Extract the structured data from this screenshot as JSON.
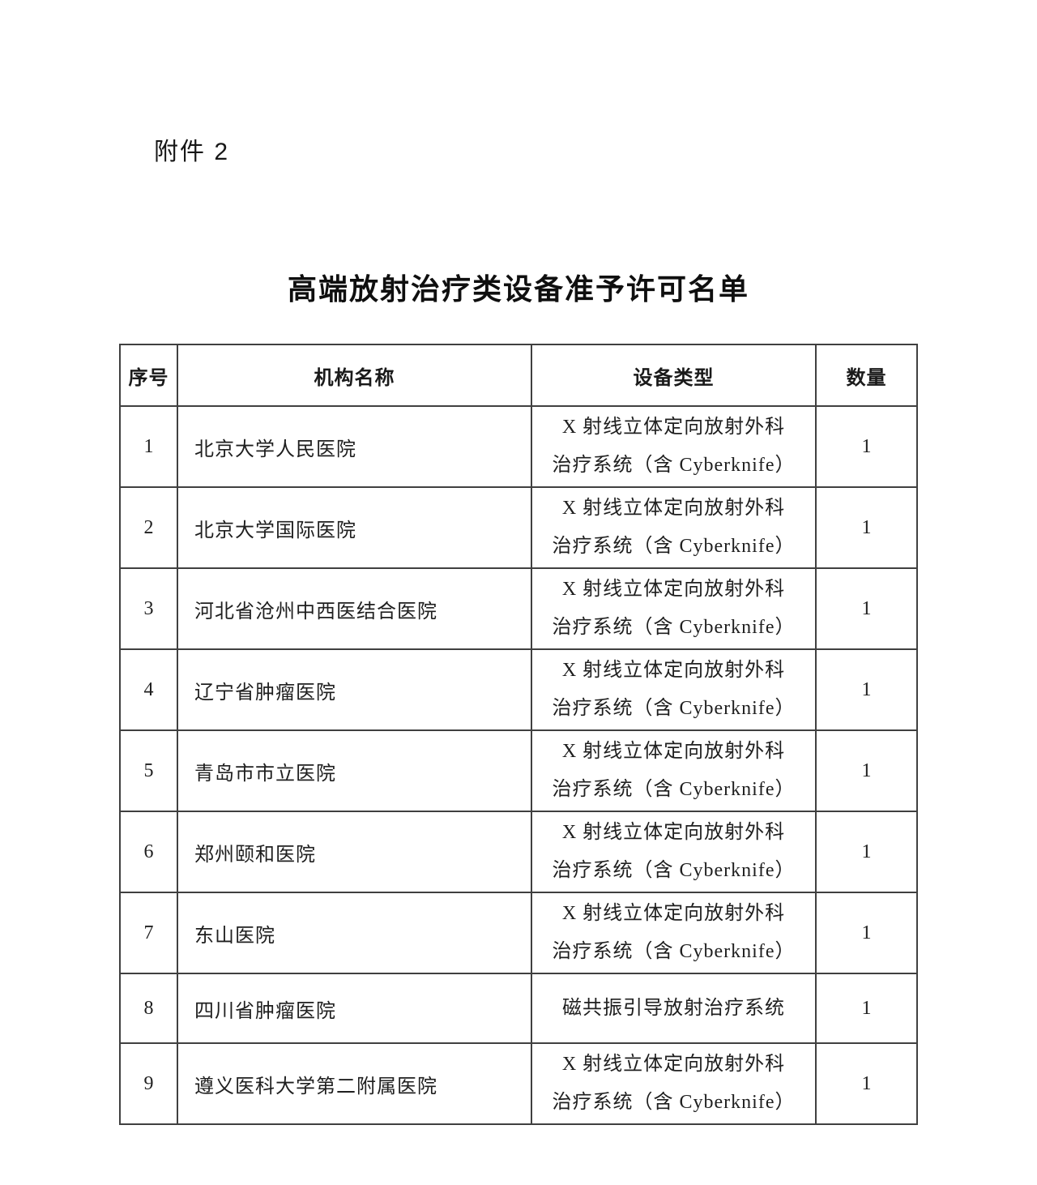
{
  "page": {
    "attachment_label": "附件 2",
    "title": "高端放射治疗类设备准予许可名单"
  },
  "table": {
    "headers": {
      "no": "序号",
      "org": "机构名称",
      "device": "设备类型",
      "qty": "数量"
    },
    "rows": [
      {
        "no": "1",
        "org": "北京大学人民医院",
        "device_line1": "X 射线立体定向放射外科",
        "device_line2": "治疗系统（含 Cyberknife）",
        "qty": "1"
      },
      {
        "no": "2",
        "org": "北京大学国际医院",
        "device_line1": "X 射线立体定向放射外科",
        "device_line2": "治疗系统（含 Cyberknife）",
        "qty": "1"
      },
      {
        "no": "3",
        "org": "河北省沧州中西医结合医院",
        "device_line1": "X 射线立体定向放射外科",
        "device_line2": "治疗系统（含 Cyberknife）",
        "qty": "1"
      },
      {
        "no": "4",
        "org": "辽宁省肿瘤医院",
        "device_line1": "X 射线立体定向放射外科",
        "device_line2": "治疗系统（含 Cyberknife）",
        "qty": "1"
      },
      {
        "no": "5",
        "org": "青岛市市立医院",
        "device_line1": "X 射线立体定向放射外科",
        "device_line2": "治疗系统（含 Cyberknife）",
        "qty": "1"
      },
      {
        "no": "6",
        "org": "郑州颐和医院",
        "device_line1": "X 射线立体定向放射外科",
        "device_line2": "治疗系统（含 Cyberknife）",
        "qty": "1"
      },
      {
        "no": "7",
        "org": "东山医院",
        "device_line1": "X 射线立体定向放射外科",
        "device_line2": "治疗系统（含 Cyberknife）",
        "qty": "1"
      },
      {
        "no": "8",
        "org": "四川省肿瘤医院",
        "device_line1": "磁共振引导放射治疗系统",
        "device_line2": "",
        "qty": "1"
      },
      {
        "no": "9",
        "org": "遵义医科大学第二附属医院",
        "device_line1": "X 射线立体定向放射外科",
        "device_line2": "治疗系统（含 Cyberknife）",
        "qty": "1"
      }
    ]
  }
}
